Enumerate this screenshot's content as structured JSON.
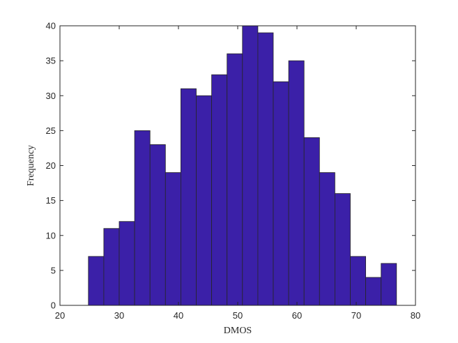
{
  "chart_data": {
    "type": "bar",
    "title": "",
    "xlabel": "DMOS",
    "ylabel": "Frequency",
    "xlim": [
      20,
      80
    ],
    "ylim": [
      0,
      40
    ],
    "xticks": [
      20,
      30,
      40,
      50,
      60,
      70,
      80
    ],
    "yticks": [
      0,
      5,
      10,
      15,
      20,
      25,
      30,
      35,
      40
    ],
    "grid": false,
    "bar_color": "#3b20a8",
    "bar_edge_color": "#262626",
    "bins": [
      {
        "x0": 24.8,
        "x1": 27.4,
        "value": 7
      },
      {
        "x0": 27.4,
        "x1": 30.0,
        "value": 11
      },
      {
        "x0": 30.0,
        "x1": 32.6,
        "value": 12
      },
      {
        "x0": 32.6,
        "x1": 35.2,
        "value": 25
      },
      {
        "x0": 35.2,
        "x1": 37.8,
        "value": 23
      },
      {
        "x0": 37.8,
        "x1": 40.4,
        "value": 19
      },
      {
        "x0": 40.4,
        "x1": 43.0,
        "value": 31
      },
      {
        "x0": 43.0,
        "x1": 45.6,
        "value": 30
      },
      {
        "x0": 45.6,
        "x1": 48.2,
        "value": 33
      },
      {
        "x0": 48.2,
        "x1": 50.8,
        "value": 36
      },
      {
        "x0": 50.8,
        "x1": 53.4,
        "value": 40
      },
      {
        "x0": 53.4,
        "x1": 56.0,
        "value": 39
      },
      {
        "x0": 56.0,
        "x1": 58.6,
        "value": 32
      },
      {
        "x0": 58.6,
        "x1": 61.2,
        "value": 35
      },
      {
        "x0": 61.2,
        "x1": 63.8,
        "value": 24
      },
      {
        "x0": 63.8,
        "x1": 66.4,
        "value": 19
      },
      {
        "x0": 66.4,
        "x1": 69.0,
        "value": 16
      },
      {
        "x0": 69.0,
        "x1": 71.6,
        "value": 7
      },
      {
        "x0": 71.6,
        "x1": 74.2,
        "value": 4
      },
      {
        "x0": 74.2,
        "x1": 76.8,
        "value": 6
      }
    ]
  }
}
